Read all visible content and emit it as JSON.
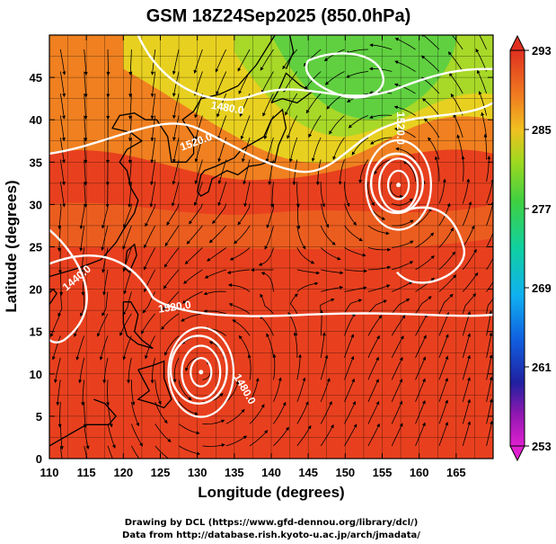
{
  "figure": {
    "title": "GSM 18Z24Sep2025 (850.0hPa)",
    "xlabel": "Longitude (degrees)",
    "ylabel": "Latitude  (degrees)",
    "credit_line1": "Drawing by DCL (https://www.gfd-dennou.org/library/dcl/)",
    "credit_line2": "Data from http://database.rish.kyoto-u.ac.jp/arch/jmadata/"
  },
  "axes": {
    "x_range": [
      110,
      170
    ],
    "y_range": [
      0,
      50
    ],
    "x_ticks": [
      110,
      115,
      120,
      125,
      130,
      135,
      140,
      145,
      150,
      155,
      160,
      165
    ],
    "y_ticks": [
      0,
      5,
      10,
      15,
      20,
      25,
      30,
      35,
      40,
      45
    ],
    "grid": true
  },
  "colorbar": {
    "labels": [
      "293",
      "285",
      "277",
      "269",
      "261",
      "253"
    ],
    "values": [
      293,
      285,
      277,
      269,
      261,
      253
    ],
    "range": [
      253,
      293
    ]
  },
  "contours": {
    "labels": [
      {
        "text": "1480.0",
        "lon": 136,
        "lat": 8,
        "rot": 60
      },
      {
        "text": "1520.0",
        "lon": 127,
        "lat": 17.5,
        "rot": -8
      },
      {
        "text": "1520.0",
        "lon": 157,
        "lat": 39,
        "rot": 90
      },
      {
        "text": "1520.0",
        "lon": 130,
        "lat": 37,
        "rot": -20
      },
      {
        "text": "1480.0",
        "lon": 134,
        "lat": 41,
        "rot": 10
      },
      {
        "text": "1440.0",
        "lon": 114,
        "lat": 21,
        "rot": -40
      }
    ]
  },
  "features": {
    "typhoons": [
      {
        "lon": 130.5,
        "lat": 10.2
      },
      {
        "lon": 157.2,
        "lat": 32.3
      }
    ]
  },
  "colors": {
    "warm": "#e0301c",
    "orange": "#f08020",
    "yellow": "#e8d020",
    "green": "#60d040",
    "contour": "#ffffff",
    "coast": "#000000"
  }
}
